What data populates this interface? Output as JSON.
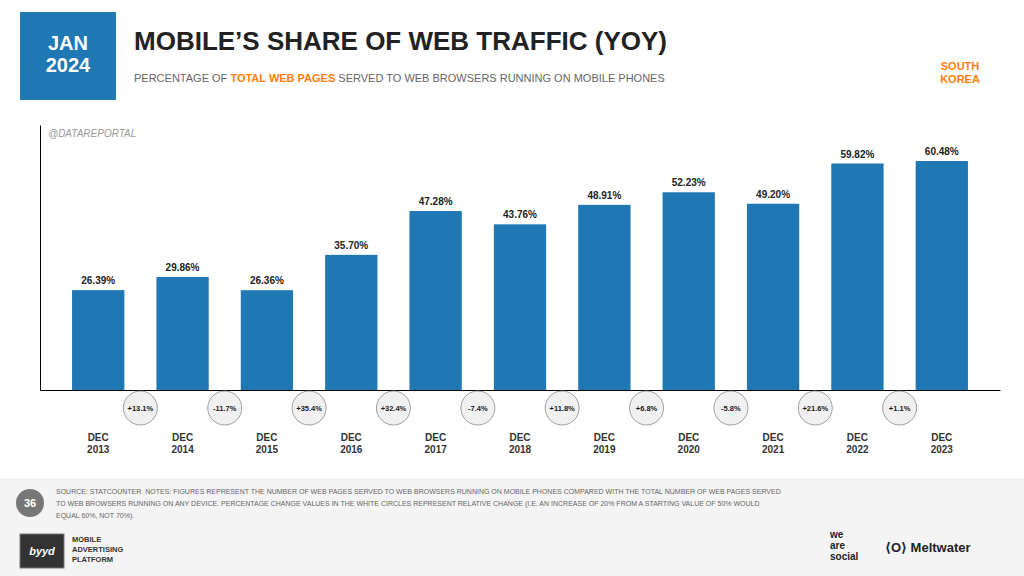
{
  "chart_data": {
    "type": "bar",
    "title": "MOBILE’S SHARE OF WEB TRAFFIC (YOY)",
    "subtitle": [
      "PERCENTAGE OF ",
      "TOTAL WEB PAGES",
      " SERVED TO WEB BROWSERS RUNNING ON MOBILE PHONES"
    ],
    "date_label": "JAN\n2024",
    "country": "SOUTH\nKOREA",
    "categories": [
      "DEC\n2013",
      "DEC\n2014",
      "DEC\n2015",
      "DEC\n2016",
      "DEC\n2017",
      "DEC\n2018",
      "DEC\n2019",
      "DEC\n2020",
      "DEC\n2021",
      "DEC\n2022",
      "DEC\n2023"
    ],
    "values": [
      26.39,
      29.86,
      26.36,
      35.7,
      47.28,
      43.76,
      48.91,
      52.23,
      49.2,
      59.82,
      60.48
    ],
    "value_labels": [
      "26.39%",
      "29.86%",
      "26.36%",
      "35.70%",
      "47.28%",
      "43.76%",
      "48.91%",
      "52.23%",
      "49.20%",
      "59.82%",
      "60.48%"
    ],
    "data_labels": true,
    "annotations": [
      "+13.1%",
      "-11.7%",
      "+35.4%",
      "+32.4%",
      "-7.4%",
      "+11.8%",
      "+6.8%",
      "-5.8%",
      "+21.6%",
      "+1.1%"
    ],
    "watermark": "@DATAREPORTAL",
    "page_number": "36",
    "source": [
      "SOURCE: STATCOUNTER  NOTES: FIGURES REPRESENT THE NUMBER OF WEB PAGES SERVED TO WEB BROWSERS RUNNING ON MOBILE PHONES COMPARED WITH THE TOTAL NUMBER OF WEB PAGES SERVED",
      "TO WEB BROWSERS RUNNING ON ANY DEVICE. PERCENTAGE CHANGE VALUES IN THE WHITE CIRCLES REPRESENT RELATIVE CHANGE (I.E. AN INCREASE OF 20% FROM A STARTING VALUE OF 50% WOULD",
      "EQUAL 60%, NOT 70%)."
    ],
    "logos": [
      "we\nare\nsocial",
      "⟨O⟩ Meltwater",
      "byyd",
      "MOBILE\nADVERTISING\nPLATFORM"
    ],
    "ylim": [
      0,
      70
    ],
    "tick_labels": "x",
    "grid": false
  }
}
